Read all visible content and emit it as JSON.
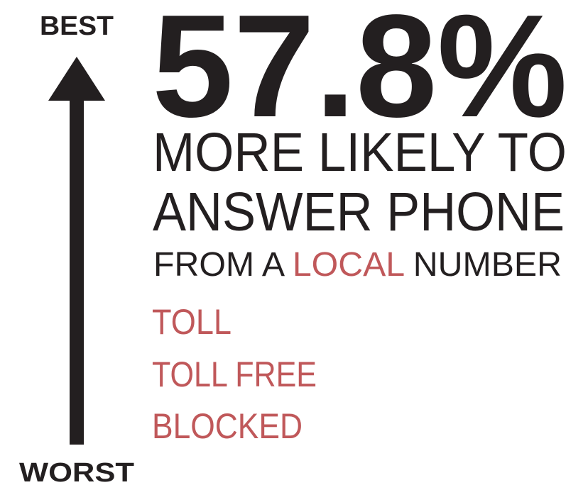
{
  "scale": {
    "top": "BEST",
    "bottom": "WORST"
  },
  "headline": {
    "stat": "57.8%",
    "line1": "MORE LIKELY TO",
    "line2": "ANSWER PHONE",
    "line3": {
      "before": "FROM A ",
      "highlight": "LOCAL",
      "after": " NUMBER"
    }
  },
  "others": [
    "TOLL",
    "TOLL FREE",
    "BLOCKED"
  ]
}
